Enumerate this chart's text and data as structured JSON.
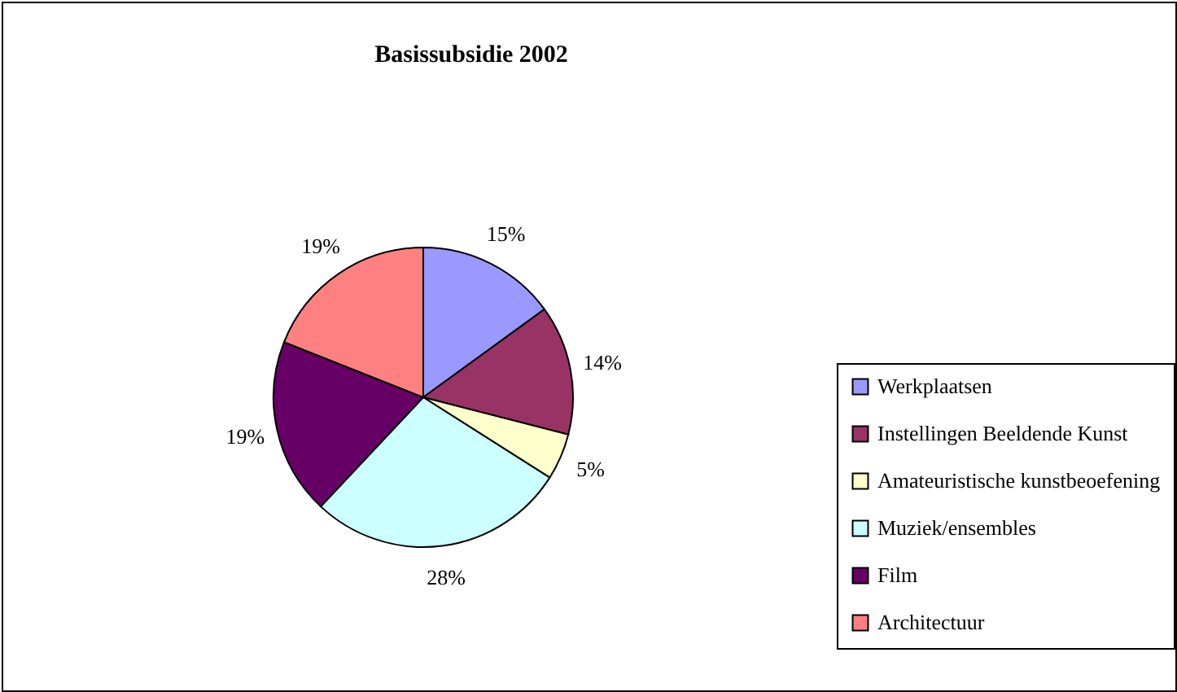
{
  "chart_data": {
    "type": "pie",
    "title": "Basissubsidie 2002",
    "categories": [
      "Werkplaatsen",
      "Instellingen Beeldende Kunst",
      "Amateuristische kunstbeoefening",
      "Muziek/ensembles",
      "Film",
      "Architectuur"
    ],
    "values": [
      15,
      14,
      5,
      28,
      19,
      19
    ],
    "colors": [
      "#9999ff",
      "#993366",
      "#ffffcc",
      "#ccffff",
      "#660066",
      "#ff8080"
    ],
    "value_labels": [
      "15%",
      "14%",
      "5%",
      "28%",
      "19%",
      "19%"
    ],
    "legend": "right"
  }
}
